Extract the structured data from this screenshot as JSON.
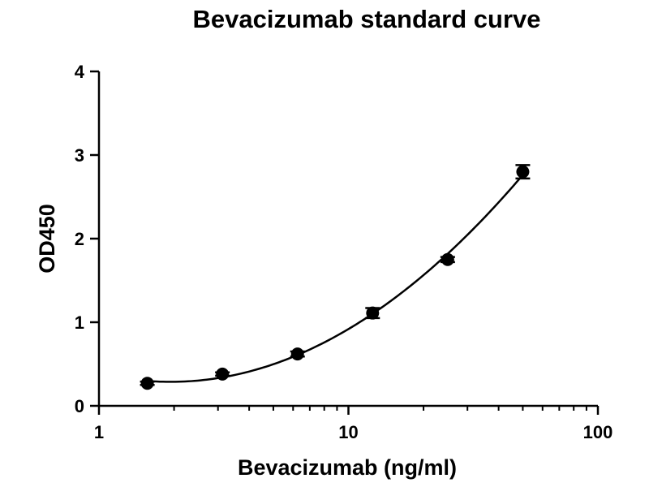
{
  "chart_data": {
    "type": "scatter",
    "title": "Bevacizumab standard curve",
    "xlabel": "Bevacizumab (ng/ml)",
    "ylabel": "OD450",
    "x_scale": "log",
    "xlim": [
      1,
      100
    ],
    "ylim": [
      0,
      4
    ],
    "x_ticks": [
      1,
      10,
      100
    ],
    "x_tick_labels": [
      "1",
      "10",
      "100"
    ],
    "y_ticks": [
      0,
      1,
      2,
      3,
      4
    ],
    "y_tick_labels": [
      "0",
      "1",
      "2",
      "3",
      "4"
    ],
    "grid": false,
    "series": [
      {
        "x": [
          1.5625,
          3.125,
          6.25,
          12.5,
          25,
          50
        ],
        "y": [
          0.27,
          0.38,
          0.62,
          1.11,
          1.75,
          2.8
        ],
        "y_error": [
          0.02,
          0.02,
          0.03,
          0.06,
          0.03,
          0.08
        ],
        "marker": "circle",
        "color": "#000000",
        "fit_curve": true
      }
    ]
  }
}
